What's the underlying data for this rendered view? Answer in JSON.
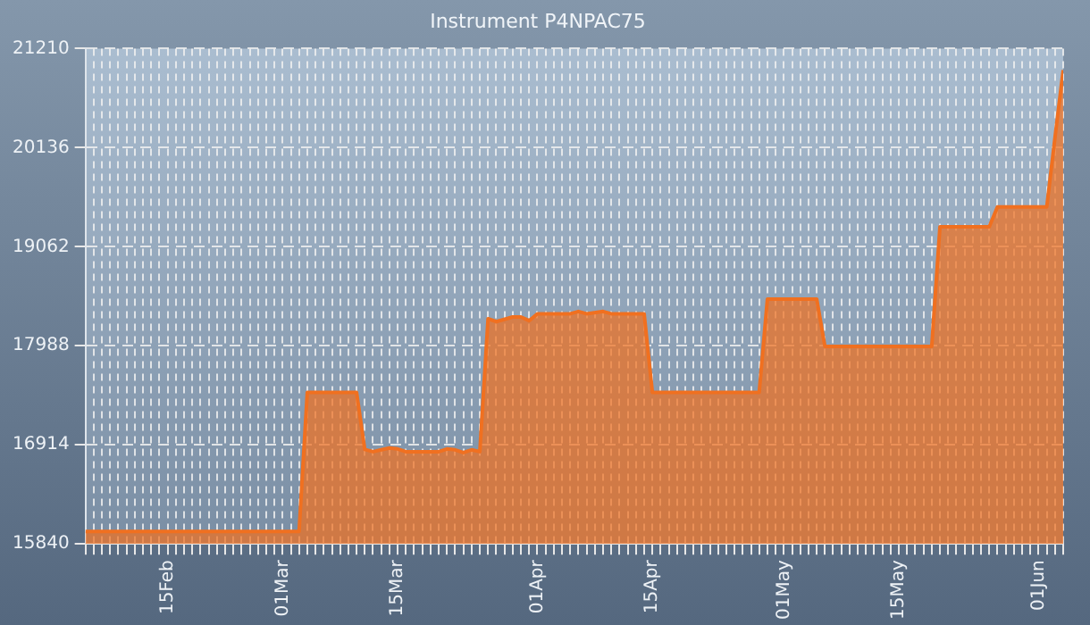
{
  "chart_data": {
    "type": "area",
    "title": "Instrument P4NPAC75",
    "x": [
      "--02-05",
      "--03-03",
      "--03-04",
      "--03-10",
      "--03-11",
      "--03-12",
      "--03-13",
      "--03-14",
      "--03-15",
      "--03-16",
      "--03-20",
      "--03-21",
      "--03-22",
      "--03-23",
      "--03-24",
      "--03-25",
      "--03-26",
      "--03-27",
      "--03-29",
      "--03-30",
      "--03-31",
      "--04-01",
      "--04-05",
      "--04-06",
      "--04-07",
      "--04-09",
      "--04-10",
      "--04-13",
      "--04-14",
      "--04-15",
      "--04-28",
      "--04-29",
      "--05-05",
      "--05-06",
      "--05-19",
      "--05-20",
      "--05-26",
      "--05-27",
      "--06-02",
      "--06-03",
      "--06-04"
    ],
    "series": [
      {
        "color": "#f07020",
        "values": [
          15975,
          15975,
          17483,
          17483,
          16864,
          16840,
          16860,
          16880,
          16870,
          16840,
          16840,
          16870,
          16860,
          16830,
          16860,
          16840,
          18281,
          18250,
          18300,
          18300,
          18260,
          18335,
          18335,
          18360,
          18335,
          18360,
          18335,
          18335,
          18335,
          17483,
          17483,
          18495,
          18495,
          17982,
          17982,
          19279,
          19279,
          19493,
          19493,
          20245,
          20976
        ]
      }
    ],
    "xlim": [
      "--02-05",
      "--06-04"
    ],
    "ylim": [
      15840,
      21210
    ],
    "yticks": [
      15840,
      16914,
      17988,
      19062,
      20136,
      21210
    ],
    "xticks": [
      {
        "value": "--02-05",
        "label": null
      },
      {
        "value": "--02-06",
        "label": null
      },
      {
        "value": "--02-07",
        "label": null
      },
      {
        "value": "--02-08",
        "label": null
      },
      {
        "value": "--02-09",
        "label": null
      },
      {
        "value": "--02-10",
        "label": null
      },
      {
        "value": "--02-11",
        "label": null
      },
      {
        "value": "--02-12",
        "label": null
      },
      {
        "value": "--02-13",
        "label": null
      },
      {
        "value": "--02-14",
        "label": null
      },
      {
        "value": "--02-15",
        "label": "15Feb"
      },
      {
        "value": "--02-16",
        "label": null
      },
      {
        "value": "--02-17",
        "label": null
      },
      {
        "value": "--02-18",
        "label": null
      },
      {
        "value": "--02-19",
        "label": null
      },
      {
        "value": "--02-20",
        "label": null
      },
      {
        "value": "--02-21",
        "label": null
      },
      {
        "value": "--02-22",
        "label": null
      },
      {
        "value": "--02-23",
        "label": null
      },
      {
        "value": "--02-24",
        "label": null
      },
      {
        "value": "--02-25",
        "label": null
      },
      {
        "value": "--02-26",
        "label": null
      },
      {
        "value": "--02-27",
        "label": null
      },
      {
        "value": "--02-28",
        "label": null
      },
      {
        "value": "--03-01",
        "label": "01Mar"
      },
      {
        "value": "--03-02",
        "label": null
      },
      {
        "value": "--03-03",
        "label": null
      },
      {
        "value": "--03-04",
        "label": null
      },
      {
        "value": "--03-05",
        "label": null
      },
      {
        "value": "--03-06",
        "label": null
      },
      {
        "value": "--03-07",
        "label": null
      },
      {
        "value": "--03-08",
        "label": null
      },
      {
        "value": "--03-09",
        "label": null
      },
      {
        "value": "--03-10",
        "label": null
      },
      {
        "value": "--03-11",
        "label": null
      },
      {
        "value": "--03-12",
        "label": null
      },
      {
        "value": "--03-13",
        "label": null
      },
      {
        "value": "--03-14",
        "label": null
      },
      {
        "value": "--03-15",
        "label": "15Mar"
      },
      {
        "value": "--03-16",
        "label": null
      },
      {
        "value": "--03-17",
        "label": null
      },
      {
        "value": "--03-18",
        "label": null
      },
      {
        "value": "--03-19",
        "label": null
      },
      {
        "value": "--03-20",
        "label": null
      },
      {
        "value": "--03-21",
        "label": null
      },
      {
        "value": "--03-22",
        "label": null
      },
      {
        "value": "--03-23",
        "label": null
      },
      {
        "value": "--03-24",
        "label": null
      },
      {
        "value": "--03-25",
        "label": null
      },
      {
        "value": "--03-26",
        "label": null
      },
      {
        "value": "--03-27",
        "label": null
      },
      {
        "value": "--03-28",
        "label": null
      },
      {
        "value": "--03-29",
        "label": null
      },
      {
        "value": "--03-30",
        "label": null
      },
      {
        "value": "--03-31",
        "label": null
      },
      {
        "value": "--04-01",
        "label": "01Apr"
      },
      {
        "value": "--04-02",
        "label": null
      },
      {
        "value": "--04-03",
        "label": null
      },
      {
        "value": "--04-04",
        "label": null
      },
      {
        "value": "--04-05",
        "label": null
      },
      {
        "value": "--04-06",
        "label": null
      },
      {
        "value": "--04-07",
        "label": null
      },
      {
        "value": "--04-08",
        "label": null
      },
      {
        "value": "--04-09",
        "label": null
      },
      {
        "value": "--04-10",
        "label": null
      },
      {
        "value": "--04-11",
        "label": null
      },
      {
        "value": "--04-12",
        "label": null
      },
      {
        "value": "--04-13",
        "label": null
      },
      {
        "value": "--04-14",
        "label": null
      },
      {
        "value": "--04-15",
        "label": "15Apr"
      },
      {
        "value": "--04-16",
        "label": null
      },
      {
        "value": "--04-17",
        "label": null
      },
      {
        "value": "--04-18",
        "label": null
      },
      {
        "value": "--04-19",
        "label": null
      },
      {
        "value": "--04-20",
        "label": null
      },
      {
        "value": "--04-21",
        "label": null
      },
      {
        "value": "--04-22",
        "label": null
      },
      {
        "value": "--04-23",
        "label": null
      },
      {
        "value": "--04-24",
        "label": null
      },
      {
        "value": "--04-25",
        "label": null
      },
      {
        "value": "--04-26",
        "label": null
      },
      {
        "value": "--04-27",
        "label": null
      },
      {
        "value": "--04-28",
        "label": null
      },
      {
        "value": "--04-29",
        "label": null
      },
      {
        "value": "--04-30",
        "label": null
      },
      {
        "value": "--05-01",
        "label": "01May"
      },
      {
        "value": "--05-02",
        "label": null
      },
      {
        "value": "--05-03",
        "label": null
      },
      {
        "value": "--05-04",
        "label": null
      },
      {
        "value": "--05-05",
        "label": null
      },
      {
        "value": "--05-06",
        "label": null
      },
      {
        "value": "--05-07",
        "label": null
      },
      {
        "value": "--05-08",
        "label": null
      },
      {
        "value": "--05-09",
        "label": null
      },
      {
        "value": "--05-10",
        "label": null
      },
      {
        "value": "--05-11",
        "label": null
      },
      {
        "value": "--05-12",
        "label": null
      },
      {
        "value": "--05-13",
        "label": null
      },
      {
        "value": "--05-14",
        "label": null
      },
      {
        "value": "--05-15",
        "label": "15May"
      },
      {
        "value": "--05-16",
        "label": null
      },
      {
        "value": "--05-17",
        "label": null
      },
      {
        "value": "--05-18",
        "label": null
      },
      {
        "value": "--05-19",
        "label": null
      },
      {
        "value": "--05-20",
        "label": null
      },
      {
        "value": "--05-21",
        "label": null
      },
      {
        "value": "--05-22",
        "label": null
      },
      {
        "value": "--05-23",
        "label": null
      },
      {
        "value": "--05-24",
        "label": null
      },
      {
        "value": "--05-25",
        "label": null
      },
      {
        "value": "--05-26",
        "label": null
      },
      {
        "value": "--05-27",
        "label": null
      },
      {
        "value": "--05-28",
        "label": null
      },
      {
        "value": "--05-29",
        "label": null
      },
      {
        "value": "--05-30",
        "label": null
      },
      {
        "value": "--05-31",
        "label": null
      },
      {
        "value": "--06-01",
        "label": "01Jun"
      },
      {
        "value": "--06-02",
        "label": null
      },
      {
        "value": "--06-03",
        "label": null
      },
      {
        "value": "--06-04",
        "label": null
      }
    ],
    "grid": true
  }
}
